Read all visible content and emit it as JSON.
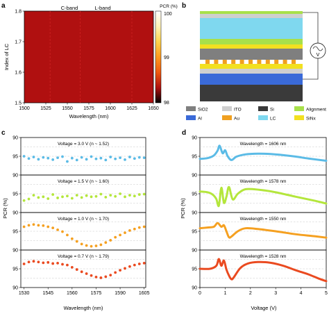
{
  "panel_labels": {
    "a": "a",
    "b": "b",
    "c": "c",
    "d": "d"
  },
  "panel_a": {
    "band_labels": [
      "C-band",
      "L-band"
    ],
    "xlabel": "Wavelength (nm)",
    "ylabel": "Index of LC",
    "xticks": [
      "1500",
      "1525",
      "1550",
      "1575",
      "1600",
      "1625",
      "1650"
    ],
    "yticks": [
      "1.5",
      "1.6",
      "1.7",
      "1.8"
    ],
    "colorbar_title": "PCR (%)",
    "colorbar_ticks": [
      "100",
      "99",
      "98"
    ],
    "colormap": [
      "#ffffff",
      "#fff3b8",
      "#ffd44d",
      "#ff9a1f",
      "#f05a10",
      "#b01010",
      "#000000"
    ],
    "dashed_line_color": "#cc2020"
  },
  "panel_b": {
    "source_symbol": "V",
    "legend": [
      {
        "label": "SiO2",
        "color": "#7f7f7f"
      },
      {
        "label": "ITO",
        "color": "#cfcfcf"
      },
      {
        "label": "Si",
        "color": "#3a3a3a"
      },
      {
        "label": "Alignment",
        "color": "#a8e04a"
      },
      {
        "label": "Al",
        "color": "#3a6ad8"
      },
      {
        "label": "Au",
        "color": "#f0a020"
      },
      {
        "label": "LC",
        "color": "#7fd8ef"
      },
      {
        "label": "SiNx",
        "color": "#f2e020"
      }
    ]
  },
  "panel_c": {
    "xlabel": "Wavelength (nm)",
    "ylabel": "PCR (%)",
    "xticks": [
      "1530",
      "1545",
      "1560",
      "1575",
      "1590",
      "1605"
    ],
    "yticks": [
      "90",
      "95",
      "90",
      "95",
      "90",
      "95",
      "90",
      "95",
      "90"
    ],
    "rows": [
      {
        "label": "Voltage = 3.0 V (n ~ 1.52)",
        "color": "#5bbbe6"
      },
      {
        "label": "Voltage = 1.5 V (n ~ 1.60)",
        "color": "#b4e63c"
      },
      {
        "label": "Voltage = 1.0 V (n ~ 1.70)",
        "color": "#f5a020"
      },
      {
        "label": "Voltage = 0.7 V (n ~ 1.79)",
        "color": "#ea4a20"
      }
    ]
  },
  "panel_d": {
    "xlabel": "Voltage (V)",
    "ylabel": "PCR (%)",
    "xticks": [
      "0",
      "1",
      "2",
      "3",
      "4",
      "5"
    ],
    "yticks": [
      "90",
      "95",
      "90",
      "95",
      "90",
      "95",
      "90",
      "95",
      "90"
    ],
    "rows": [
      {
        "label": "Wavelength = 1606 nm",
        "color": "#5bbbe6"
      },
      {
        "label": "Wavelength = 1578 nm",
        "color": "#b4e63c"
      },
      {
        "label": "Wavelength = 1550 nm",
        "color": "#f5a020"
      },
      {
        "label": "Wavelength = 1528 nm",
        "color": "#ea4a20"
      }
    ]
  },
  "chart_data": [
    {
      "type": "heatmap",
      "x": [
        1500,
        1650
      ],
      "y": [
        1.5,
        1.8
      ],
      "xlim": [
        1500,
        1650
      ],
      "ylim": [
        1.5,
        1.8
      ],
      "colorbar_range": [
        98,
        100
      ],
      "dashed_lines_x": [
        1530,
        1565,
        1625
      ]
    },
    {
      "type": "scatter",
      "x": [
        1530,
        1533,
        1536,
        1539,
        1542,
        1545,
        1548,
        1551,
        1554,
        1557,
        1560,
        1563,
        1566,
        1569,
        1572,
        1575,
        1578,
        1581,
        1584,
        1587,
        1590,
        1593,
        1596,
        1599,
        1602,
        1605
      ],
      "xlim": [
        1528,
        1606
      ],
      "ylim": [
        90,
        100
      ],
      "series": [
        {
          "values": [
            95.0,
            94.4,
            94.8,
            94.2,
            94.7,
            94.5,
            94.1,
            94.6,
            94.9,
            93.6,
            94.5,
            94.0,
            94.7,
            94.2,
            94.9,
            94.3,
            94.5,
            94.0,
            94.8,
            94.3,
            94.6,
            94.1,
            94.8,
            94.4,
            94.7,
            94.6
          ]
        },
        {
          "values": [
            93.2,
            93.6,
            94.6,
            94.0,
            94.2,
            93.7,
            94.8,
            93.9,
            94.2,
            94.4,
            93.8,
            94.6,
            94.0,
            94.5,
            94.2,
            94.3,
            94.9,
            94.1,
            94.6,
            94.3,
            95.0,
            94.2,
            94.6,
            94.4,
            94.8,
            94.9
          ]
        },
        {
          "values": [
            96.2,
            96.6,
            96.8,
            96.6,
            96.5,
            96.2,
            95.9,
            95.4,
            94.9,
            94.0,
            93.0,
            92.3,
            91.6,
            91.2,
            91.0,
            91.1,
            91.4,
            92.0,
            92.6,
            93.4,
            94.0,
            94.6,
            95.2,
            95.6,
            96.0,
            96.2
          ]
        },
        {
          "values": [
            96.3,
            96.8,
            97.0,
            96.8,
            96.6,
            96.7,
            96.4,
            96.5,
            96.2,
            96.0,
            95.4,
            94.8,
            94.2,
            93.7,
            93.2,
            92.8,
            92.6,
            92.9,
            93.3,
            94.0,
            94.6,
            95.1,
            95.6,
            96.0,
            96.3,
            96.5
          ]
        }
      ]
    },
    {
      "type": "line",
      "xlim": [
        0,
        5
      ],
      "ylim": [
        90,
        100
      ],
      "series": [
        {
          "x": [
            0,
            0.3,
            0.55,
            0.7,
            0.78,
            0.9,
            1.0,
            1.1,
            1.25,
            1.45,
            1.8,
            2.3,
            2.8,
            3.3,
            3.8,
            4.3,
            5.0
          ],
          "values": [
            94.3,
            94.5,
            95.2,
            96.5,
            97.8,
            95.8,
            96.6,
            95.0,
            94.0,
            94.9,
            95.5,
            95.7,
            95.6,
            95.3,
            94.9,
            94.4,
            93.8
          ]
        },
        {
          "x": [
            0,
            0.3,
            0.5,
            0.65,
            0.75,
            0.85,
            0.95,
            1.05,
            1.15,
            1.3,
            1.5,
            1.8,
            2.3,
            3.0,
            3.8,
            4.5,
            5.0
          ],
          "values": [
            95.6,
            95.4,
            94.8,
            93.6,
            91.8,
            96.6,
            92.6,
            94.2,
            96.8,
            93.5,
            95.0,
            96.2,
            96.1,
            95.4,
            94.2,
            93.2,
            92.4
          ]
        },
        {
          "x": [
            0,
            0.3,
            0.55,
            0.7,
            0.85,
            0.95,
            1.05,
            1.15,
            1.25,
            1.5,
            1.8,
            2.3,
            3.0,
            3.8,
            4.5,
            5.0
          ],
          "values": [
            95.8,
            96.0,
            96.2,
            97.2,
            96.2,
            96.6,
            95.0,
            93.4,
            93.6,
            95.0,
            95.8,
            95.6,
            95.0,
            94.2,
            93.7,
            93.3
          ]
        },
        {
          "x": [
            0,
            0.4,
            0.65,
            0.75,
            0.85,
            0.95,
            1.05,
            1.15,
            1.25,
            1.35,
            1.6,
            1.9,
            2.3,
            2.8,
            3.3,
            3.8,
            4.3,
            4.7,
            5.0
          ],
          "values": [
            95.0,
            95.0,
            95.8,
            97.6,
            95.8,
            97.2,
            94.8,
            93.2,
            92.2,
            92.8,
            95.2,
            96.4,
            96.8,
            96.6,
            95.8,
            94.6,
            93.5,
            92.4,
            91.7
          ]
        }
      ]
    }
  ]
}
